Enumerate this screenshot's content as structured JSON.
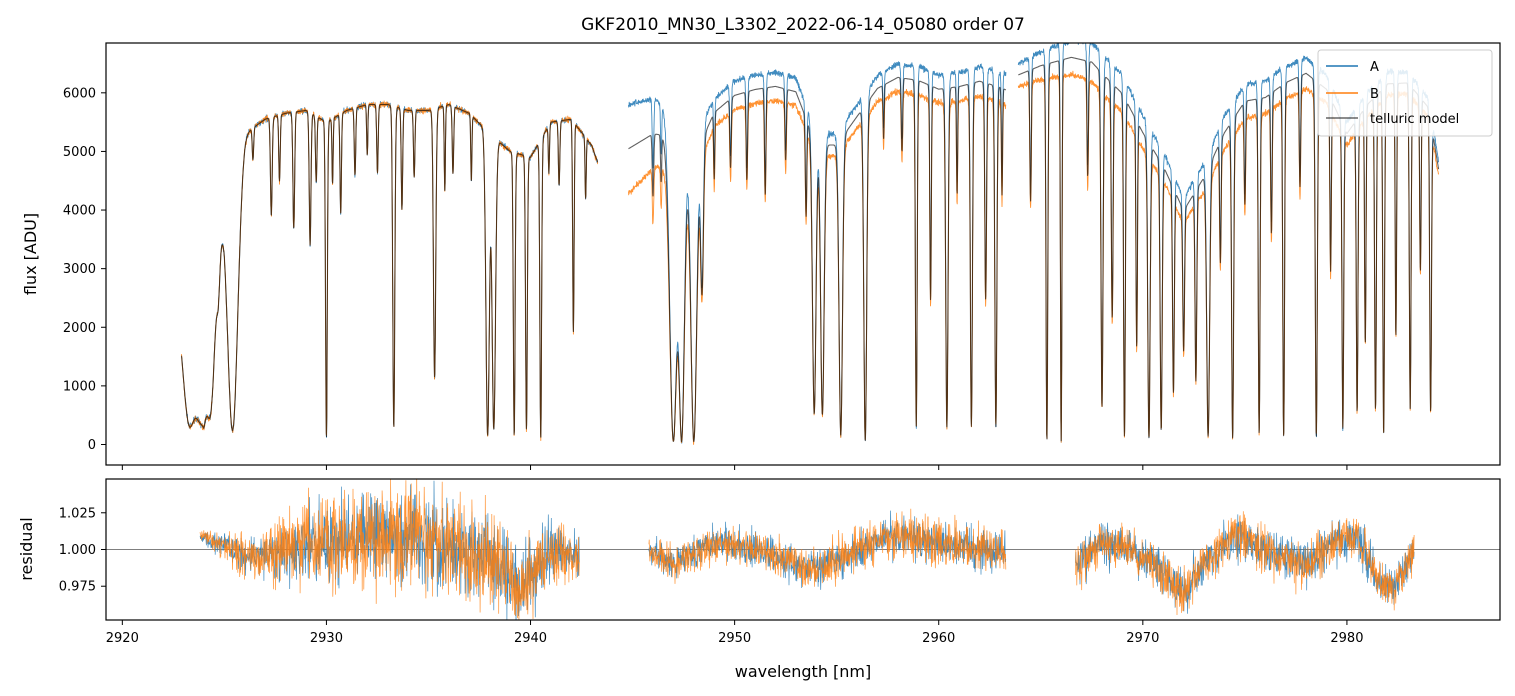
{
  "chart_data": {
    "type": "line",
    "title": "GKF2010_MN30_L3302_2022-06-14_05080  order 07",
    "colors": {
      "A": "#1f77b4",
      "B": "#ff7f0e",
      "telluric": "#000000",
      "residual_ref": "#555555"
    },
    "top_panel": {
      "ylabel": "flux [ADU]",
      "ylim": [
        -350,
        6850
      ],
      "yticks": [
        0,
        1000,
        2000,
        3000,
        4000,
        5000,
        6000
      ],
      "legend": {
        "placement": "top-right",
        "entries": [
          "A",
          "B",
          "telluric model"
        ]
      },
      "segments": [
        [
          2922.9,
          2943.3
        ],
        [
          2944.8,
          2963.3
        ],
        [
          2963.9,
          2984.5
        ]
      ],
      "continuum_A": [
        [
          2922.9,
          1900
        ],
        [
          2923.3,
          1200
        ],
        [
          2924.0,
          400
        ],
        [
          2925.0,
          4300
        ],
        [
          2926.0,
          5300
        ],
        [
          2927.0,
          5550
        ],
        [
          2928.0,
          5650
        ],
        [
          2929.0,
          5700
        ],
        [
          2930.0,
          5500
        ],
        [
          2931.0,
          5700
        ],
        [
          2932.0,
          5800
        ],
        [
          2933.0,
          5800
        ],
        [
          2934.0,
          5700
        ],
        [
          2935.0,
          5700
        ],
        [
          2936.0,
          5800
        ],
        [
          2937.0,
          5650
        ],
        [
          2938.0,
          5300
        ],
        [
          2939.0,
          5000
        ],
        [
          2940.0,
          4900
        ],
        [
          2941.0,
          5500
        ],
        [
          2942.0,
          5550
        ],
        [
          2943.0,
          5100
        ],
        [
          2943.3,
          4800
        ],
        [
          2944.8,
          5800
        ],
        [
          2946.0,
          5900
        ],
        [
          2947.0,
          5700
        ],
        [
          2948.0,
          5200
        ],
        [
          2949.0,
          5900
        ],
        [
          2950.0,
          6200
        ],
        [
          2951.0,
          6300
        ],
        [
          2952.0,
          6350
        ],
        [
          2953.0,
          6250
        ],
        [
          2954.0,
          5300
        ],
        [
          2955.0,
          5300
        ],
        [
          2956.0,
          5800
        ],
        [
          2957.0,
          6300
        ],
        [
          2958.0,
          6500
        ],
        [
          2959.0,
          6450
        ],
        [
          2960.0,
          6300
        ],
        [
          2961.0,
          6350
        ],
        [
          2962.0,
          6450
        ],
        [
          2963.0,
          6350
        ],
        [
          2963.3,
          6300
        ],
        [
          2963.9,
          6500
        ],
        [
          2965.0,
          6700
        ],
        [
          2966.5,
          6900
        ],
        [
          2967.5,
          6850
        ],
        [
          2969.0,
          6300
        ],
        [
          2970.0,
          5600
        ],
        [
          2971.0,
          5000
        ],
        [
          2972.0,
          4200
        ],
        [
          2973.0,
          4800
        ],
        [
          2974.0,
          5600
        ],
        [
          2975.0,
          6150
        ],
        [
          2976.0,
          6200
        ],
        [
          2977.0,
          6450
        ],
        [
          2978.0,
          6600
        ],
        [
          2979.0,
          6300
        ],
        [
          2980.0,
          5500
        ],
        [
          2981.0,
          6000
        ],
        [
          2982.0,
          6350
        ],
        [
          2983.0,
          6350
        ],
        [
          2984.0,
          5900
        ],
        [
          2984.5,
          4800
        ]
      ],
      "continuum_B_ratio": [
        [
          2922.9,
          1.0
        ],
        [
          2943.3,
          1.0
        ],
        [
          2944.8,
          0.74
        ],
        [
          2946.5,
          0.82
        ],
        [
          2949.0,
          0.92
        ],
        [
          2956.0,
          0.93
        ],
        [
          2963.3,
          0.92
        ],
        [
          2963.9,
          0.94
        ],
        [
          2968.0,
          0.9
        ],
        [
          2974.0,
          0.9
        ],
        [
          2984.5,
          0.95
        ]
      ],
      "absorption_lines": [
        [
          2923.3,
          0.35,
          0.75
        ],
        [
          2923.8,
          0.25,
          0.35
        ],
        [
          2924.3,
          0.25,
          0.7
        ],
        [
          2924.7,
          0.1,
          0.2
        ],
        [
          2925.4,
          0.35,
          0.95
        ],
        [
          2926.4,
          0.05,
          0.1
        ],
        [
          2927.3,
          0.06,
          0.3
        ],
        [
          2927.7,
          0.05,
          0.2
        ],
        [
          2928.4,
          0.06,
          0.35
        ],
        [
          2929.2,
          0.06,
          0.4
        ],
        [
          2929.5,
          0.05,
          0.2
        ],
        [
          2930.0,
          0.06,
          0.98
        ],
        [
          2930.3,
          0.04,
          0.2
        ],
        [
          2930.7,
          0.05,
          0.3
        ],
        [
          2931.4,
          0.05,
          0.2
        ],
        [
          2932.0,
          0.04,
          0.15
        ],
        [
          2932.5,
          0.05,
          0.2
        ],
        [
          2933.3,
          0.07,
          0.95
        ],
        [
          2933.7,
          0.05,
          0.3
        ],
        [
          2934.3,
          0.05,
          0.2
        ],
        [
          2935.3,
          0.08,
          0.8
        ],
        [
          2935.8,
          0.04,
          0.25
        ],
        [
          2936.2,
          0.05,
          0.2
        ],
        [
          2937.1,
          0.04,
          0.2
        ],
        [
          2937.9,
          0.12,
          0.97
        ],
        [
          2938.2,
          0.12,
          0.95
        ],
        [
          2939.2,
          0.06,
          0.97
        ],
        [
          2939.8,
          0.06,
          0.95
        ],
        [
          2940.5,
          0.06,
          0.98
        ],
        [
          2940.9,
          0.04,
          0.15
        ],
        [
          2941.4,
          0.05,
          0.2
        ],
        [
          2942.1,
          0.05,
          0.65
        ],
        [
          2942.7,
          0.04,
          0.2
        ],
        [
          2946.0,
          0.05,
          0.2
        ],
        [
          2946.4,
          0.04,
          0.15
        ],
        [
          2947.0,
          0.25,
          0.99
        ],
        [
          2947.4,
          0.2,
          0.99
        ],
        [
          2948.0,
          0.2,
          0.99
        ],
        [
          2948.4,
          0.1,
          0.5
        ],
        [
          2949.0,
          0.04,
          0.2
        ],
        [
          2949.8,
          0.05,
          0.2
        ],
        [
          2950.6,
          0.05,
          0.25
        ],
        [
          2951.5,
          0.05,
          0.3
        ],
        [
          2952.5,
          0.05,
          0.2
        ],
        [
          2953.5,
          0.05,
          0.3
        ],
        [
          2953.9,
          0.12,
          0.9
        ],
        [
          2954.3,
          0.12,
          0.9
        ],
        [
          2955.2,
          0.12,
          0.97
        ],
        [
          2956.4,
          0.1,
          0.99
        ],
        [
          2957.3,
          0.04,
          0.15
        ],
        [
          2958.2,
          0.05,
          0.2
        ],
        [
          2958.9,
          0.06,
          0.95
        ],
        [
          2959.6,
          0.05,
          0.6
        ],
        [
          2960.4,
          0.08,
          0.95
        ],
        [
          2960.9,
          0.04,
          0.3
        ],
        [
          2961.6,
          0.07,
          0.95
        ],
        [
          2962.3,
          0.06,
          0.6
        ],
        [
          2962.8,
          0.07,
          0.95
        ],
        [
          2963.1,
          0.04,
          0.3
        ],
        [
          2964.5,
          0.05,
          0.35
        ],
        [
          2965.3,
          0.06,
          0.99
        ],
        [
          2966.0,
          0.05,
          0.99
        ],
        [
          2967.3,
          0.05,
          0.3
        ],
        [
          2968.0,
          0.07,
          0.9
        ],
        [
          2968.5,
          0.06,
          0.65
        ],
        [
          2969.1,
          0.06,
          0.98
        ],
        [
          2969.7,
          0.05,
          0.7
        ],
        [
          2970.3,
          0.08,
          0.98
        ],
        [
          2970.9,
          0.07,
          0.95
        ],
        [
          2971.5,
          0.06,
          0.8
        ],
        [
          2972.0,
          0.06,
          0.6
        ],
        [
          2972.6,
          0.06,
          0.75
        ],
        [
          2973.2,
          0.1,
          0.97
        ],
        [
          2973.8,
          0.05,
          0.4
        ],
        [
          2974.4,
          0.07,
          0.98
        ],
        [
          2975.0,
          0.05,
          0.3
        ],
        [
          2975.7,
          0.06,
          0.97
        ],
        [
          2976.3,
          0.05,
          0.4
        ],
        [
          2976.9,
          0.06,
          0.98
        ],
        [
          2977.7,
          0.05,
          0.3
        ],
        [
          2978.5,
          0.07,
          0.98
        ],
        [
          2979.2,
          0.05,
          0.5
        ],
        [
          2979.8,
          0.06,
          0.95
        ],
        [
          2980.5,
          0.06,
          0.9
        ],
        [
          2980.9,
          0.05,
          0.7
        ],
        [
          2981.4,
          0.06,
          0.9
        ],
        [
          2981.8,
          0.06,
          0.97
        ],
        [
          2982.4,
          0.05,
          0.7
        ],
        [
          2983.1,
          0.06,
          0.9
        ],
        [
          2983.6,
          0.05,
          0.5
        ],
        [
          2984.1,
          0.06,
          0.9
        ]
      ]
    },
    "bottom_panel": {
      "ylabel": "residual",
      "ylim": [
        0.952,
        1.048
      ],
      "yticks": [
        0.975,
        1.0,
        1.025
      ],
      "ytick_labels": [
        "0.975",
        "1.000",
        "1.025"
      ],
      "reference_line": 1.0,
      "segments": [
        [
          2923.8,
          2942.4
        ],
        [
          2945.8,
          2963.3
        ],
        [
          2966.7,
          2983.3
        ]
      ],
      "noise_amplitude": [
        [
          2923.8,
          0.004
        ],
        [
          2930.0,
          0.022
        ],
        [
          2935.0,
          0.026
        ],
        [
          2940.0,
          0.02
        ],
        [
          2942.4,
          0.012
        ],
        [
          2945.8,
          0.008
        ],
        [
          2954.0,
          0.01
        ],
        [
          2963.3,
          0.012
        ],
        [
          2966.7,
          0.01
        ],
        [
          2975.0,
          0.012
        ],
        [
          2983.3,
          0.01
        ]
      ],
      "trend": [
        [
          2923.8,
          1.01
        ],
        [
          2926.0,
          0.995
        ],
        [
          2930.0,
          1.005
        ],
        [
          2934.0,
          1.01
        ],
        [
          2938.0,
          0.995
        ],
        [
          2939.5,
          0.975
        ],
        [
          2941.0,
          1.0
        ],
        [
          2942.4,
          0.995
        ],
        [
          2945.8,
          1.0
        ],
        [
          2947.0,
          0.99
        ],
        [
          2949.0,
          1.005
        ],
        [
          2951.0,
          1.0
        ],
        [
          2953.0,
          0.99
        ],
        [
          2954.0,
          0.985
        ],
        [
          2956.0,
          1.0
        ],
        [
          2958.0,
          1.01
        ],
        [
          2960.0,
          1.005
        ],
        [
          2962.0,
          1.0
        ],
        [
          2963.3,
          1.0
        ],
        [
          2966.7,
          0.99
        ],
        [
          2968.0,
          1.005
        ],
        [
          2969.5,
          1.0
        ],
        [
          2971.0,
          0.985
        ],
        [
          2972.0,
          0.97
        ],
        [
          2973.0,
          0.99
        ],
        [
          2974.5,
          1.01
        ],
        [
          2976.0,
          1.0
        ],
        [
          2978.0,
          0.99
        ],
        [
          2979.5,
          1.005
        ],
        [
          2980.5,
          1.01
        ],
        [
          2981.5,
          0.98
        ],
        [
          2982.3,
          0.975
        ],
        [
          2983.3,
          1.0
        ]
      ]
    },
    "xaxis": {
      "xlabel": "wavelength [nm]",
      "xlim": [
        2919.2,
        2987.5
      ],
      "xticks": [
        2920,
        2930,
        2940,
        2950,
        2960,
        2970,
        2980
      ]
    }
  }
}
